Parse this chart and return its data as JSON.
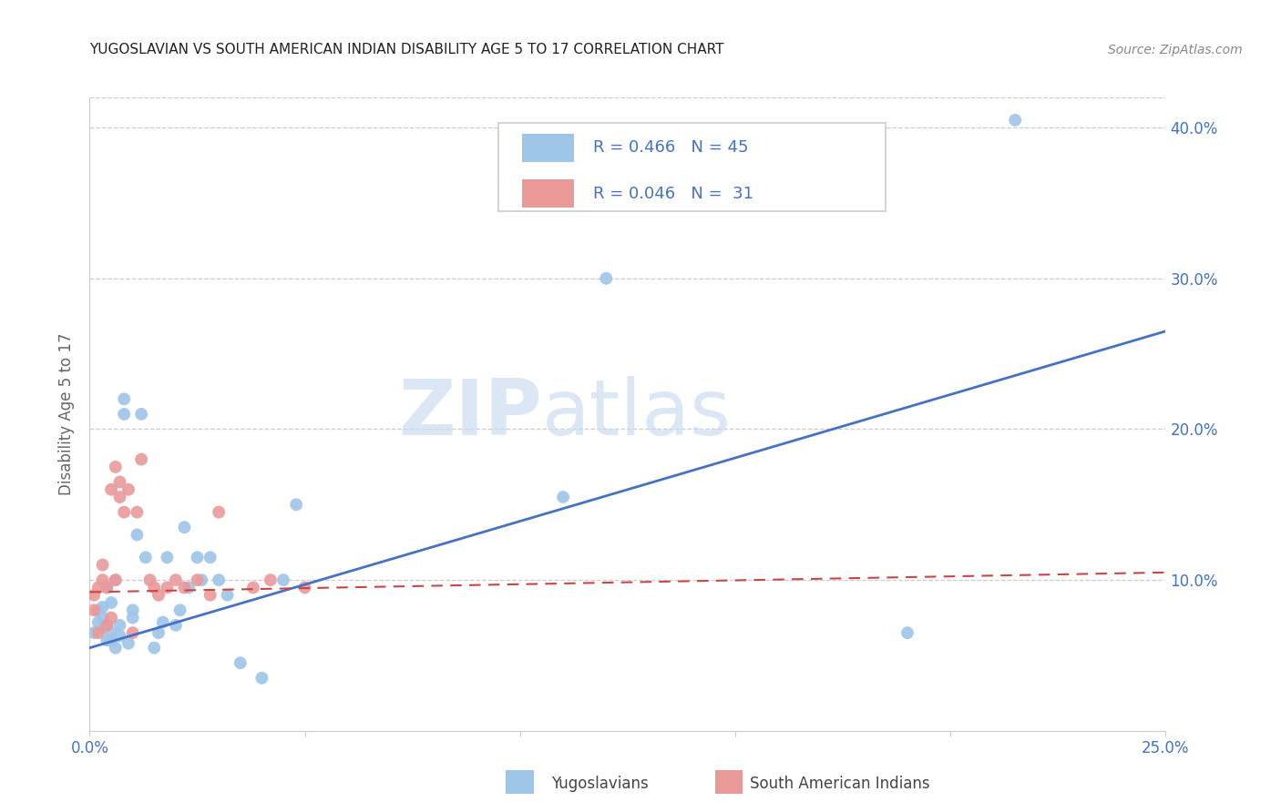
{
  "title": "YUGOSLAVIAN VS SOUTH AMERICAN INDIAN DISABILITY AGE 5 TO 17 CORRELATION CHART",
  "source": "Source: ZipAtlas.com",
  "ylabel_left": "Disability Age 5 to 17",
  "watermark_zip": "ZIP",
  "watermark_atlas": "atlas",
  "xmin": 0.0,
  "xmax": 0.25,
  "ymin": 0.0,
  "ymax": 0.42,
  "yticks_right": [
    0.1,
    0.2,
    0.3,
    0.4
  ],
  "ytick_right_labels": [
    "10.0%",
    "20.0%",
    "30.0%",
    "40.0%"
  ],
  "xticks": [
    0.0,
    0.05,
    0.1,
    0.15,
    0.2,
    0.25
  ],
  "xtick_labels_show": [
    "0.0%",
    "",
    "",
    "",
    "",
    "25.0%"
  ],
  "legend_line1": "R = 0.466   N = 45",
  "legend_line2": "R = 0.046   N =  31",
  "blue_color": "#9fc5e8",
  "pink_color": "#ea9999",
  "line_blue": "#4472c4",
  "line_pink": "#cc4444",
  "axis_color": "#4472c4",
  "grid_color": "#cccccc",
  "title_color": "#222222",
  "source_color": "#888888",
  "ylabel_color": "#666666",
  "background_color": "#ffffff",
  "legend_border_color": "#cccccc",
  "blue_dots_x": [
    0.001,
    0.002,
    0.002,
    0.003,
    0.003,
    0.003,
    0.004,
    0.004,
    0.004,
    0.005,
    0.005,
    0.005,
    0.006,
    0.006,
    0.007,
    0.007,
    0.008,
    0.008,
    0.009,
    0.01,
    0.01,
    0.011,
    0.012,
    0.013,
    0.015,
    0.016,
    0.017,
    0.018,
    0.02,
    0.021,
    0.022,
    0.023,
    0.025,
    0.026,
    0.028,
    0.03,
    0.032,
    0.035,
    0.04,
    0.045,
    0.048,
    0.11,
    0.12,
    0.19,
    0.215
  ],
  "blue_dots_y": [
    0.065,
    0.072,
    0.08,
    0.068,
    0.075,
    0.082,
    0.06,
    0.07,
    0.095,
    0.06,
    0.065,
    0.085,
    0.055,
    0.1,
    0.07,
    0.063,
    0.21,
    0.22,
    0.058,
    0.075,
    0.08,
    0.13,
    0.21,
    0.115,
    0.055,
    0.065,
    0.072,
    0.115,
    0.07,
    0.08,
    0.135,
    0.095,
    0.115,
    0.1,
    0.115,
    0.1,
    0.09,
    0.045,
    0.035,
    0.1,
    0.15,
    0.155,
    0.3,
    0.065,
    0.405
  ],
  "pink_dots_x": [
    0.001,
    0.001,
    0.002,
    0.002,
    0.003,
    0.003,
    0.004,
    0.004,
    0.005,
    0.005,
    0.006,
    0.006,
    0.007,
    0.007,
    0.008,
    0.009,
    0.01,
    0.011,
    0.012,
    0.014,
    0.015,
    0.016,
    0.018,
    0.02,
    0.022,
    0.025,
    0.028,
    0.03,
    0.038,
    0.042,
    0.05
  ],
  "pink_dots_y": [
    0.08,
    0.09,
    0.065,
    0.095,
    0.1,
    0.11,
    0.07,
    0.095,
    0.075,
    0.16,
    0.1,
    0.175,
    0.155,
    0.165,
    0.145,
    0.16,
    0.065,
    0.145,
    0.18,
    0.1,
    0.095,
    0.09,
    0.095,
    0.1,
    0.095,
    0.1,
    0.09,
    0.145,
    0.095,
    0.1,
    0.095
  ],
  "blue_trend_x": [
    0.0,
    0.25
  ],
  "blue_trend_y": [
    0.055,
    0.265
  ],
  "pink_trend_x": [
    0.0,
    0.25
  ],
  "pink_trend_y": [
    0.092,
    0.105
  ]
}
